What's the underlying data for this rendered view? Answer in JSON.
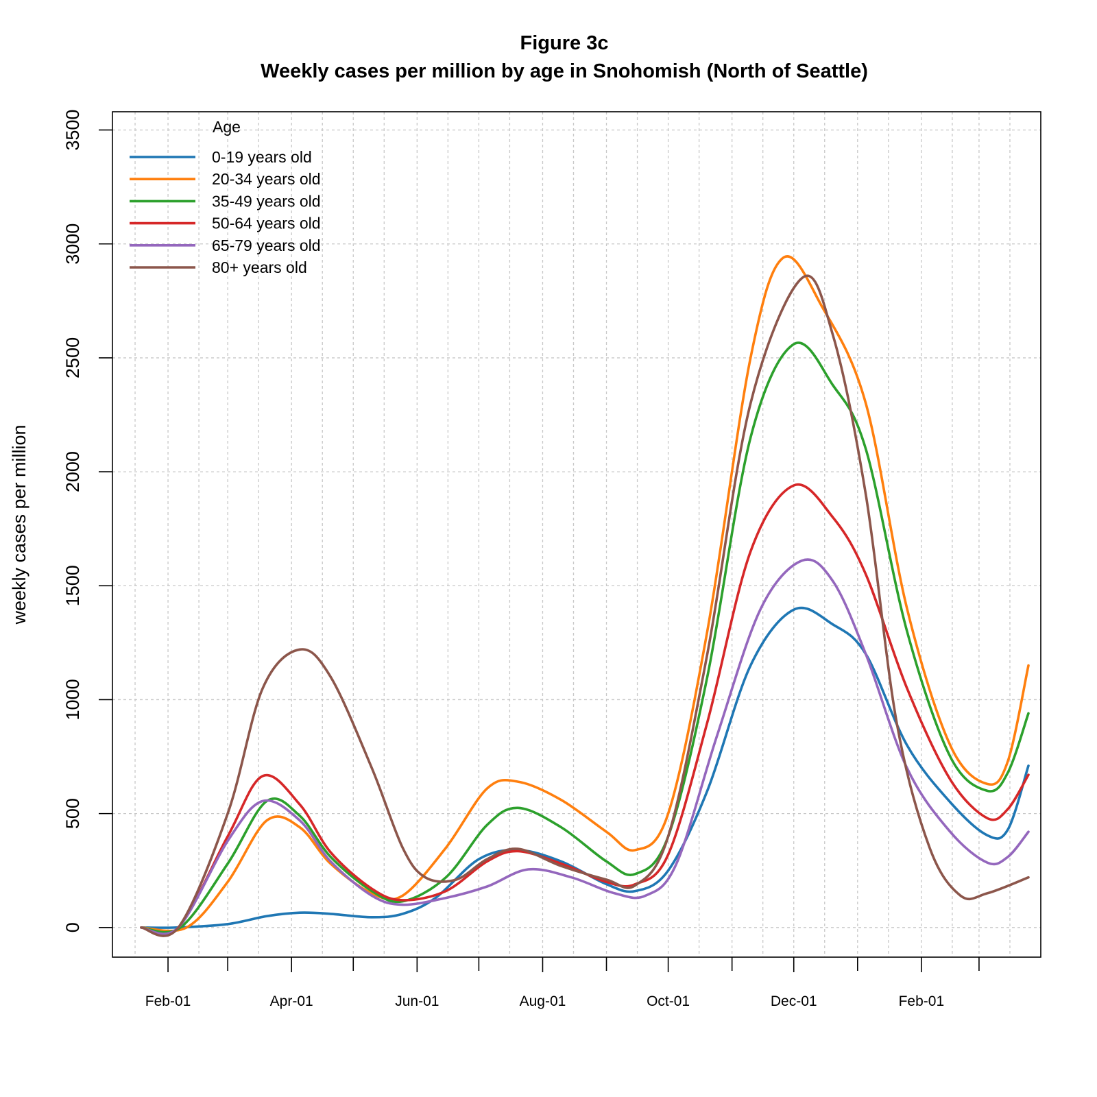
{
  "chart_data": {
    "type": "line",
    "title": "Figure 3c",
    "subtitle": "Weekly cases per million by age in Snohomish (North of Seattle)",
    "xlabel": "",
    "ylabel": "weekly cases per million",
    "ylim": [
      -130,
      3580
    ],
    "yticks": [
      0,
      500,
      1000,
      1500,
      2000,
      2500,
      3000,
      3500
    ],
    "xlim": [
      "2020-01-05",
      "2021-03-31"
    ],
    "xticks": [
      {
        "date": "2020-02-01",
        "label": "Feb-01"
      },
      {
        "date": "2020-04-01",
        "label": "Apr-01"
      },
      {
        "date": "2020-06-01",
        "label": "Jun-01"
      },
      {
        "date": "2020-08-01",
        "label": "Aug-01"
      },
      {
        "date": "2020-10-01",
        "label": "Oct-01"
      },
      {
        "date": "2020-12-01",
        "label": "Dec-01"
      },
      {
        "date": "2021-02-01",
        "label": "Feb-01"
      }
    ],
    "minor_ticks": [
      "2020-03-01",
      "2020-05-01",
      "2020-07-01",
      "2020-09-01",
      "2020-11-01",
      "2021-01-01",
      "2021-03-01"
    ],
    "grid": true,
    "legend": {
      "title": "Age",
      "position": "top-left"
    },
    "series": [
      {
        "name": "0-19 years old",
        "color": "#1f77b4",
        "points": [
          [
            "2020-01-19",
            0
          ],
          [
            "2020-02-05",
            0
          ],
          [
            "2020-03-01",
            15
          ],
          [
            "2020-03-20",
            50
          ],
          [
            "2020-04-05",
            65
          ],
          [
            "2020-04-20",
            60
          ],
          [
            "2020-05-10",
            45
          ],
          [
            "2020-05-25",
            60
          ],
          [
            "2020-06-10",
            130
          ],
          [
            "2020-07-01",
            300
          ],
          [
            "2020-07-20",
            340
          ],
          [
            "2020-08-10",
            290
          ],
          [
            "2020-09-01",
            190
          ],
          [
            "2020-09-15",
            160
          ],
          [
            "2020-10-01",
            250
          ],
          [
            "2020-10-20",
            600
          ],
          [
            "2020-11-10",
            1150
          ],
          [
            "2020-12-01",
            1395
          ],
          [
            "2020-12-20",
            1330
          ],
          [
            "2021-01-05",
            1200
          ],
          [
            "2021-01-25",
            800
          ],
          [
            "2021-02-15",
            550
          ],
          [
            "2021-03-05",
            405
          ],
          [
            "2021-03-15",
            430
          ],
          [
            "2021-03-25",
            710
          ]
        ]
      },
      {
        "name": "20-34 years old",
        "color": "#ff7f0e",
        "points": [
          [
            "2020-01-19",
            0
          ],
          [
            "2020-02-10",
            0
          ],
          [
            "2020-03-01",
            200
          ],
          [
            "2020-03-20",
            470
          ],
          [
            "2020-04-05",
            440
          ],
          [
            "2020-04-20",
            280
          ],
          [
            "2020-05-10",
            150
          ],
          [
            "2020-05-25",
            140
          ],
          [
            "2020-06-15",
            350
          ],
          [
            "2020-07-05",
            610
          ],
          [
            "2020-07-20",
            640
          ],
          [
            "2020-08-10",
            560
          ],
          [
            "2020-09-01",
            420
          ],
          [
            "2020-09-15",
            340
          ],
          [
            "2020-10-01",
            500
          ],
          [
            "2020-10-20",
            1300
          ],
          [
            "2020-11-10",
            2500
          ],
          [
            "2020-11-26",
            2940
          ],
          [
            "2020-12-15",
            2720
          ],
          [
            "2021-01-05",
            2300
          ],
          [
            "2021-01-25",
            1400
          ],
          [
            "2021-02-15",
            800
          ],
          [
            "2021-03-05",
            630
          ],
          [
            "2021-03-15",
            730
          ],
          [
            "2021-03-25",
            1150
          ]
        ]
      },
      {
        "name": "35-49 years old",
        "color": "#2ca02c",
        "points": [
          [
            "2020-01-19",
            0
          ],
          [
            "2020-02-07",
            0
          ],
          [
            "2020-03-01",
            280
          ],
          [
            "2020-03-20",
            555
          ],
          [
            "2020-04-05",
            490
          ],
          [
            "2020-04-20",
            310
          ],
          [
            "2020-05-10",
            160
          ],
          [
            "2020-05-25",
            115
          ],
          [
            "2020-06-15",
            220
          ],
          [
            "2020-07-05",
            450
          ],
          [
            "2020-07-20",
            525
          ],
          [
            "2020-08-10",
            440
          ],
          [
            "2020-09-01",
            290
          ],
          [
            "2020-09-15",
            235
          ],
          [
            "2020-10-01",
            400
          ],
          [
            "2020-10-20",
            1100
          ],
          [
            "2020-11-10",
            2150
          ],
          [
            "2020-12-01",
            2560
          ],
          [
            "2020-12-20",
            2380
          ],
          [
            "2021-01-05",
            2100
          ],
          [
            "2021-01-25",
            1300
          ],
          [
            "2021-02-15",
            750
          ],
          [
            "2021-03-05",
            600
          ],
          [
            "2021-03-15",
            680
          ],
          [
            "2021-03-25",
            940
          ]
        ]
      },
      {
        "name": "50-64 years old",
        "color": "#d62728",
        "points": [
          [
            "2020-01-19",
            0
          ],
          [
            "2020-02-06",
            0
          ],
          [
            "2020-03-01",
            400
          ],
          [
            "2020-03-18",
            665
          ],
          [
            "2020-04-05",
            540
          ],
          [
            "2020-04-20",
            330
          ],
          [
            "2020-05-10",
            170
          ],
          [
            "2020-05-25",
            120
          ],
          [
            "2020-06-15",
            160
          ],
          [
            "2020-07-05",
            290
          ],
          [
            "2020-07-20",
            335
          ],
          [
            "2020-08-10",
            280
          ],
          [
            "2020-09-01",
            200
          ],
          [
            "2020-09-15",
            190
          ],
          [
            "2020-10-01",
            320
          ],
          [
            "2020-10-20",
            900
          ],
          [
            "2020-11-10",
            1650
          ],
          [
            "2020-12-01",
            1940
          ],
          [
            "2020-12-20",
            1800
          ],
          [
            "2021-01-05",
            1550
          ],
          [
            "2021-01-25",
            1050
          ],
          [
            "2021-02-15",
            650
          ],
          [
            "2021-03-05",
            480
          ],
          [
            "2021-03-15",
            520
          ],
          [
            "2021-03-25",
            670
          ]
        ]
      },
      {
        "name": "65-79 years old",
        "color": "#9467bd",
        "points": [
          [
            "2020-01-19",
            0
          ],
          [
            "2020-02-06",
            0
          ],
          [
            "2020-03-01",
            380
          ],
          [
            "2020-03-18",
            555
          ],
          [
            "2020-04-05",
            470
          ],
          [
            "2020-04-20",
            290
          ],
          [
            "2020-05-10",
            140
          ],
          [
            "2020-05-25",
            100
          ],
          [
            "2020-06-15",
            130
          ],
          [
            "2020-07-05",
            180
          ],
          [
            "2020-07-25",
            255
          ],
          [
            "2020-08-15",
            220
          ],
          [
            "2020-09-05",
            150
          ],
          [
            "2020-09-20",
            140
          ],
          [
            "2020-10-05",
            280
          ],
          [
            "2020-10-25",
            850
          ],
          [
            "2020-11-15",
            1400
          ],
          [
            "2020-12-05",
            1610
          ],
          [
            "2020-12-20",
            1520
          ],
          [
            "2021-01-05",
            1200
          ],
          [
            "2021-01-25",
            700
          ],
          [
            "2021-02-15",
            420
          ],
          [
            "2021-03-05",
            285
          ],
          [
            "2021-03-15",
            310
          ],
          [
            "2021-03-25",
            420
          ]
        ]
      },
      {
        "name": "80+ years old",
        "color": "#8c564b",
        "points": [
          [
            "2020-01-19",
            0
          ],
          [
            "2020-02-06",
            0
          ],
          [
            "2020-03-01",
            500
          ],
          [
            "2020-03-18",
            1050
          ],
          [
            "2020-04-05",
            1220
          ],
          [
            "2020-04-20",
            1100
          ],
          [
            "2020-05-10",
            700
          ],
          [
            "2020-05-25",
            350
          ],
          [
            "2020-06-05",
            220
          ],
          [
            "2020-06-20",
            210
          ],
          [
            "2020-07-05",
            300
          ],
          [
            "2020-07-20",
            345
          ],
          [
            "2020-08-10",
            270
          ],
          [
            "2020-09-01",
            210
          ],
          [
            "2020-09-15",
            185
          ],
          [
            "2020-10-01",
            400
          ],
          [
            "2020-10-20",
            1200
          ],
          [
            "2020-11-10",
            2300
          ],
          [
            "2020-12-05",
            2850
          ],
          [
            "2020-12-20",
            2600
          ],
          [
            "2021-01-05",
            1900
          ],
          [
            "2021-01-20",
            900
          ],
          [
            "2021-02-05",
            350
          ],
          [
            "2021-02-20",
            140
          ],
          [
            "2021-03-05",
            150
          ],
          [
            "2021-03-25",
            220
          ]
        ]
      }
    ]
  }
}
